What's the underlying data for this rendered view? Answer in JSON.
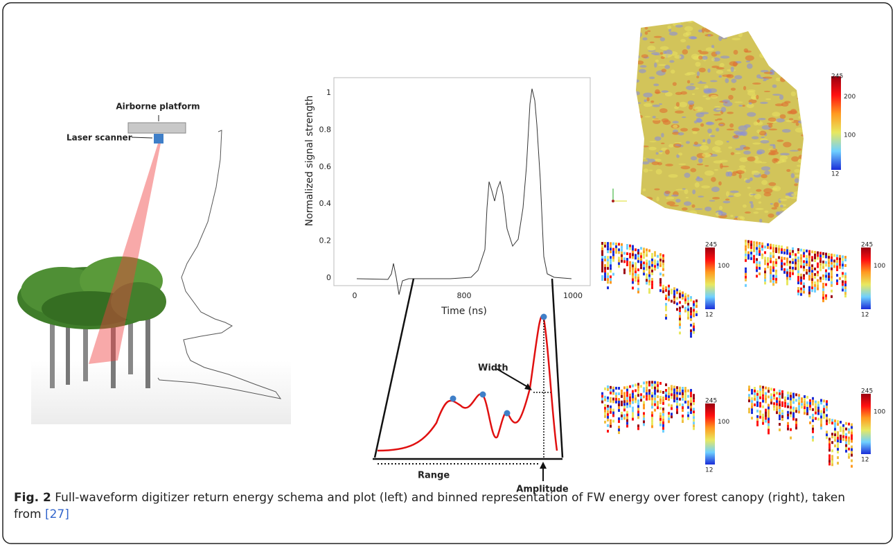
{
  "schema": {
    "platform_label": "Airborne platform",
    "scanner_label": "Laser scanner"
  },
  "plot": {
    "y_label": "Normalized signal strength",
    "y_ticks": [
      "0",
      "0.2",
      "0.4",
      "0.6",
      "0.8",
      "1"
    ],
    "x_label": "Time (ns)",
    "x_ticks": [
      "0",
      "800",
      "1000"
    ]
  },
  "diagram": {
    "width_label": "Width",
    "range_label": "Range",
    "amplitude_label": "Amplitude"
  },
  "voxel_3d": {
    "colorbar_ticks": [
      "245",
      "200",
      "100",
      "12"
    ]
  },
  "profiles": [
    {
      "colorbar_ticks": [
        "245",
        "100",
        "12"
      ]
    },
    {
      "colorbar_ticks": [
        "245",
        "100",
        "12"
      ]
    },
    {
      "colorbar_ticks": [
        "245",
        "100",
        "12"
      ]
    },
    {
      "colorbar_ticks": [
        "245",
        "100",
        "12"
      ]
    }
  ],
  "caption": {
    "label": "Fig. 2",
    "text": "Full-waveform digitizer return energy schema and plot (left) and binned representation of FW energy over forest canopy (right), taken",
    "text_continued": "from",
    "ref": "[27]"
  }
}
